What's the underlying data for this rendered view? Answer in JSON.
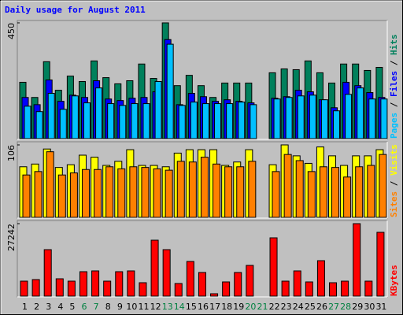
{
  "title": "Daily usage for August 2011",
  "legend_separator": " / ",
  "chart_data": [
    {
      "type": "bar",
      "ylim": [
        0,
        450
      ],
      "yticks": [
        450
      ],
      "series": [
        {
          "name": "Hits",
          "color": "#00805c",
          "values": [
            219,
            160,
            299,
            188,
            243,
            222,
            302,
            237,
            213,
            225,
            290,
            234,
            450,
            206,
            246,
            206,
            160,
            216,
            216,
            216,
            null,
            256,
            271,
            268,
            302,
            256,
            216,
            290,
            290,
            265,
            277
          ]
        },
        {
          "name": "Files",
          "color": "#0000ff",
          "values": [
            160,
            132,
            228,
            145,
            169,
            160,
            225,
            154,
            148,
            157,
            160,
            182,
            385,
            132,
            176,
            163,
            145,
            151,
            145,
            139,
            null,
            157,
            163,
            188,
            182,
            151,
            120,
            219,
            206,
            179,
            160
          ]
        },
        {
          "name": "Pages",
          "color": "#00c0ff",
          "values": [
            126,
            105,
            176,
            114,
            166,
            139,
            197,
            136,
            129,
            136,
            136,
            222,
            367,
            129,
            142,
            136,
            136,
            136,
            142,
            132,
            null,
            154,
            160,
            166,
            169,
            151,
            108,
            172,
            197,
            154,
            154
          ]
        }
      ]
    },
    {
      "type": "bar",
      "ylim": [
        0,
        106
      ],
      "yticks": [
        106
      ],
      "series": [
        {
          "name": "Visits",
          "color": "#ffff00",
          "values": [
            74,
            78,
            100,
            73,
            77,
            91,
            88,
            76,
            82,
            99,
            76,
            76,
            74,
            94,
            99,
            99,
            99,
            76,
            81,
            99,
            null,
            77,
            106,
            90,
            79,
            103,
            90,
            76,
            90,
            90,
            99
          ]
        },
        {
          "name": "Sites",
          "color": "#ff8000",
          "values": [
            62,
            67,
            96,
            62,
            65,
            70,
            70,
            74,
            71,
            74,
            73,
            71,
            69,
            82,
            81,
            88,
            78,
            74,
            74,
            82,
            null,
            67,
            92,
            83,
            67,
            74,
            73,
            59,
            74,
            76,
            92
          ]
        }
      ]
    },
    {
      "type": "bar",
      "ylim": [
        0,
        27242
      ],
      "yticks": [
        27242
      ],
      "categories": [
        "1",
        "2",
        "3",
        "4",
        "5",
        "6",
        "7",
        "8",
        "9",
        "10",
        "11",
        "12",
        "13",
        "14",
        "15",
        "16",
        "17",
        "18",
        "19",
        "20",
        "21",
        "22",
        "23",
        "24",
        "25",
        "26",
        "27",
        "28",
        "29",
        "30",
        "31"
      ],
      "category_colors": [
        "#000000",
        "#000000",
        "#000000",
        "#000000",
        "#000000",
        "#008040",
        "#008040",
        "#000000",
        "#000000",
        "#000000",
        "#000000",
        "#000000",
        "#008040",
        "#008040",
        "#000000",
        "#000000",
        "#000000",
        "#000000",
        "#000000",
        "#008040",
        "#008040",
        "#000000",
        "#000000",
        "#000000",
        "#000000",
        "#000000",
        "#008040",
        "#008040",
        "#000000",
        "#000000",
        "#000000"
      ],
      "series": [
        {
          "name": "KBytes",
          "color": "#ff0000",
          "values": [
            5626,
            6218,
            17470,
            6514,
            5626,
            9179,
            9475,
            5626,
            9179,
            9475,
            5034,
            21023,
            17470,
            4738,
            13028,
            8883,
            888,
            5330,
            8883,
            11548,
            null,
            21911,
            5626,
            9475,
            5330,
            13325,
            5034,
            5626,
            27242,
            5626,
            23984
          ]
        }
      ]
    }
  ]
}
